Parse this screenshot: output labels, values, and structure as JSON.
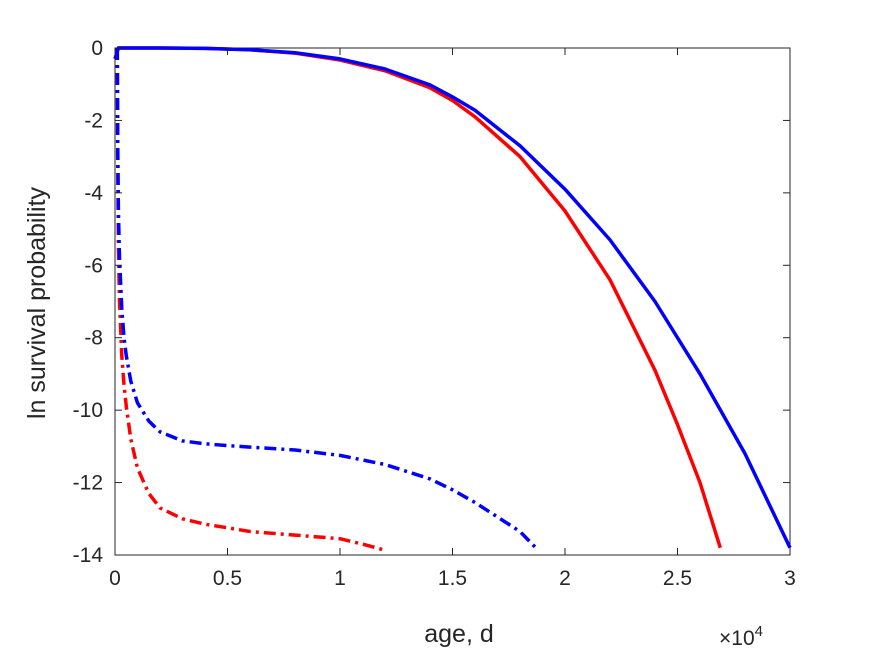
{
  "chart_data": {
    "type": "line",
    "title": "",
    "xlabel": "age, d",
    "ylabel": "ln survival probability",
    "xlim": [
      0,
      30000
    ],
    "ylim": [
      -14,
      0
    ],
    "x_exponent_label": "×10",
    "x_exponent_power": "4",
    "xticks": [
      0,
      5000,
      10000,
      15000,
      20000,
      25000,
      30000
    ],
    "xtick_labels": [
      "0",
      "0.5",
      "1",
      "1.5",
      "2",
      "2.5",
      "3"
    ],
    "yticks": [
      0,
      -2,
      -4,
      -6,
      -8,
      -10,
      -12,
      -14
    ],
    "ytick_labels": [
      "0",
      "-2",
      "-4",
      "-6",
      "-8",
      "-10",
      "-12",
      "-14"
    ],
    "grid": false,
    "series": [
      {
        "color": "#ff0000",
        "style": "solid",
        "x": [
          0,
          150,
          2000,
          4000,
          6000,
          8000,
          10000,
          12000,
          14000,
          15000,
          16000,
          18000,
          20000,
          22000,
          24000,
          25000,
          26000,
          26900
        ],
        "y": [
          -0.3,
          0,
          0,
          -0.01,
          -0.05,
          -0.14,
          -0.33,
          -0.63,
          -1.1,
          -1.45,
          -1.9,
          -3.0,
          -4.5,
          -6.4,
          -8.9,
          -10.4,
          -12.0,
          -13.8
        ]
      },
      {
        "color": "#0000ff",
        "style": "solid",
        "x": [
          0,
          150,
          2000,
          4000,
          6000,
          8000,
          10000,
          12000,
          14000,
          15000,
          16000,
          18000,
          20000,
          22000,
          24000,
          26000,
          28000,
          30000
        ],
        "y": [
          -0.3,
          0,
          0,
          -0.01,
          -0.05,
          -0.13,
          -0.3,
          -0.58,
          -1.02,
          -1.35,
          -1.72,
          -2.7,
          -3.9,
          -5.3,
          -7.0,
          -9.0,
          -11.2,
          -13.8
        ]
      },
      {
        "color": "#ff0000",
        "style": "dashdot",
        "x": [
          100,
          120,
          150,
          200,
          300,
          400,
          500,
          700,
          1000,
          1500,
          2000,
          3000,
          4000,
          5000,
          6000,
          8000,
          10000,
          11000,
          11900
        ],
        "y": [
          0,
          -3.0,
          -5.5,
          -7.0,
          -8.5,
          -9.3,
          -9.9,
          -10.8,
          -11.6,
          -12.3,
          -12.7,
          -13.0,
          -13.15,
          -13.25,
          -13.35,
          -13.45,
          -13.55,
          -13.7,
          -13.85
        ]
      },
      {
        "color": "#0000ff",
        "style": "dashdot",
        "x": [
          100,
          120,
          150,
          200,
          300,
          400,
          500,
          700,
          1000,
          1500,
          2000,
          3000,
          4000,
          5000,
          6000,
          8000,
          10000,
          12000,
          14000,
          15000,
          16000,
          17000,
          18000,
          18700
        ],
        "y": [
          0,
          -2.5,
          -4.5,
          -5.8,
          -7.2,
          -8.0,
          -8.5,
          -9.2,
          -9.8,
          -10.3,
          -10.6,
          -10.85,
          -10.93,
          -10.98,
          -11.02,
          -11.1,
          -11.25,
          -11.5,
          -11.9,
          -12.2,
          -12.55,
          -12.95,
          -13.35,
          -13.8
        ]
      }
    ]
  }
}
